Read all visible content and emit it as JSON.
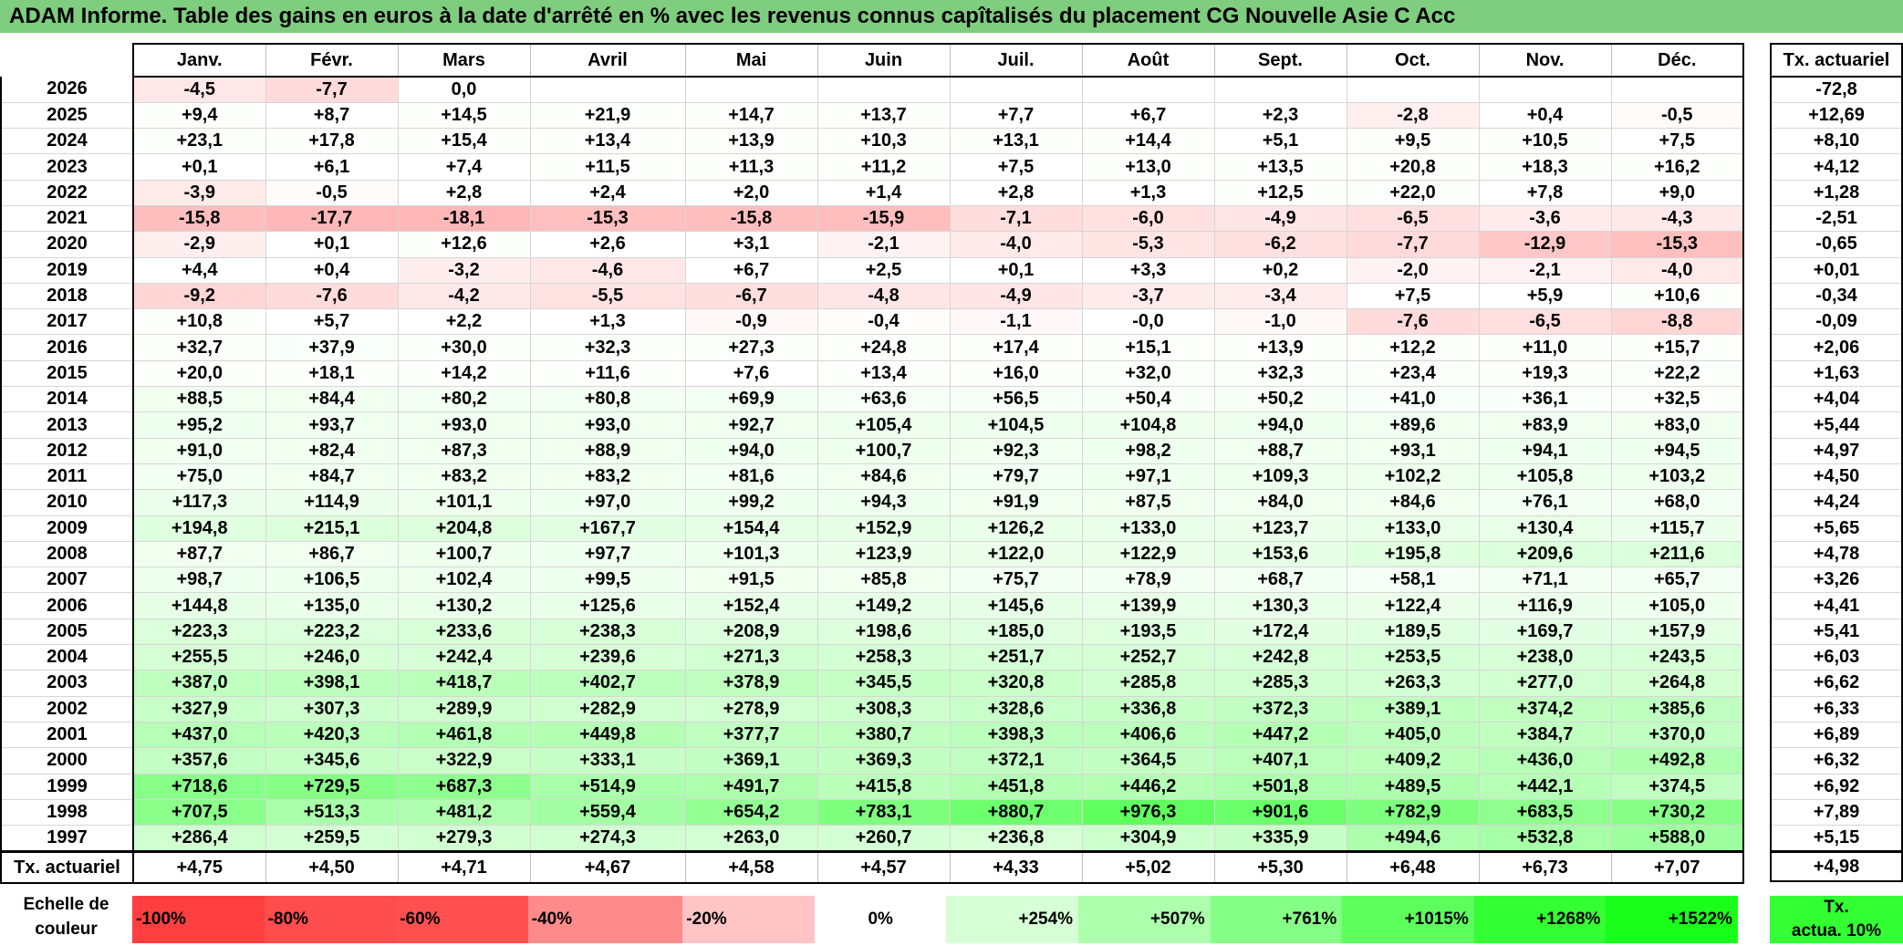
{
  "title": "ADAM Informe. Table des gains en euros à la date d'arrêté en % avec les revenus connus capîtalisés du placement CG Nouvelle Asie C Acc",
  "months": [
    "Janv.",
    "Févr.",
    "Mars",
    "Avril",
    "Mai",
    "Juin",
    "Juil.",
    "Août",
    "Sept.",
    "Oct.",
    "Nov.",
    "Déc."
  ],
  "rate_header": "Tx. actuariel",
  "rows": [
    {
      "year": "2026",
      "values": [
        "-4,5",
        "-7,7",
        "0,0",
        "",
        "",
        "",
        "",
        "",
        "",
        "",
        "",
        ""
      ],
      "rate": "-72,8"
    },
    {
      "year": "2025",
      "values": [
        "+9,4",
        "+8,7",
        "+14,5",
        "+21,9",
        "+14,7",
        "+13,7",
        "+7,7",
        "+6,7",
        "+2,3",
        "-2,8",
        "+0,4",
        "-0,5"
      ],
      "rate": "+12,69"
    },
    {
      "year": "2024",
      "values": [
        "+23,1",
        "+17,8",
        "+15,4",
        "+13,4",
        "+13,9",
        "+10,3",
        "+13,1",
        "+14,4",
        "+5,1",
        "+9,5",
        "+10,5",
        "+7,5"
      ],
      "rate": "+8,10"
    },
    {
      "year": "2023",
      "values": [
        "+0,1",
        "+6,1",
        "+7,4",
        "+11,5",
        "+11,3",
        "+11,2",
        "+7,5",
        "+13,0",
        "+13,5",
        "+20,8",
        "+18,3",
        "+16,2"
      ],
      "rate": "+4,12"
    },
    {
      "year": "2022",
      "values": [
        "-3,9",
        "-0,5",
        "+2,8",
        "+2,4",
        "+2,0",
        "+1,4",
        "+2,8",
        "+1,3",
        "+12,5",
        "+22,0",
        "+7,8",
        "+9,0"
      ],
      "rate": "+1,28"
    },
    {
      "year": "2021",
      "values": [
        "-15,8",
        "-17,7",
        "-18,1",
        "-15,3",
        "-15,8",
        "-15,9",
        "-7,1",
        "-6,0",
        "-4,9",
        "-6,5",
        "-3,6",
        "-4,3"
      ],
      "rate": "-2,51"
    },
    {
      "year": "2020",
      "values": [
        "-2,9",
        "+0,1",
        "+12,6",
        "+2,6",
        "+3,1",
        "-2,1",
        "-4,0",
        "-5,3",
        "-6,2",
        "-7,7",
        "-12,9",
        "-15,3"
      ],
      "rate": "-0,65"
    },
    {
      "year": "2019",
      "values": [
        "+4,4",
        "+0,4",
        "-3,2",
        "-4,6",
        "+6,7",
        "+2,5",
        "+0,1",
        "+3,3",
        "+0,2",
        "-2,0",
        "-2,1",
        "-4,0"
      ],
      "rate": "+0,01"
    },
    {
      "year": "2018",
      "values": [
        "-9,2",
        "-7,6",
        "-4,2",
        "-5,5",
        "-6,7",
        "-4,8",
        "-4,9",
        "-3,7",
        "-3,4",
        "+7,5",
        "+5,9",
        "+10,6"
      ],
      "rate": "-0,34"
    },
    {
      "year": "2017",
      "values": [
        "+10,8",
        "+5,7",
        "+2,2",
        "+1,3",
        "-0,9",
        "-0,4",
        "-1,1",
        "-0,0",
        "-1,0",
        "-7,6",
        "-6,5",
        "-8,8"
      ],
      "rate": "-0,09"
    },
    {
      "year": "2016",
      "values": [
        "+32,7",
        "+37,9",
        "+30,0",
        "+32,3",
        "+27,3",
        "+24,8",
        "+17,4",
        "+15,1",
        "+13,9",
        "+12,2",
        "+11,0",
        "+15,7"
      ],
      "rate": "+2,06"
    },
    {
      "year": "2015",
      "values": [
        "+20,0",
        "+18,1",
        "+14,2",
        "+11,6",
        "+7,6",
        "+13,4",
        "+16,0",
        "+32,0",
        "+32,3",
        "+23,4",
        "+19,3",
        "+22,2"
      ],
      "rate": "+1,63"
    },
    {
      "year": "2014",
      "values": [
        "+88,5",
        "+84,4",
        "+80,2",
        "+80,8",
        "+69,9",
        "+63,6",
        "+56,5",
        "+50,4",
        "+50,2",
        "+41,0",
        "+36,1",
        "+32,5"
      ],
      "rate": "+4,04"
    },
    {
      "year": "2013",
      "values": [
        "+95,2",
        "+93,7",
        "+93,0",
        "+93,0",
        "+92,7",
        "+105,4",
        "+104,5",
        "+104,8",
        "+94,0",
        "+89,6",
        "+83,9",
        "+83,0"
      ],
      "rate": "+5,44"
    },
    {
      "year": "2012",
      "values": [
        "+91,0",
        "+82,4",
        "+87,3",
        "+88,9",
        "+94,0",
        "+100,7",
        "+92,3",
        "+98,2",
        "+88,7",
        "+93,1",
        "+94,1",
        "+94,5"
      ],
      "rate": "+4,97"
    },
    {
      "year": "2011",
      "values": [
        "+75,0",
        "+84,7",
        "+83,2",
        "+83,2",
        "+81,6",
        "+84,6",
        "+79,7",
        "+97,1",
        "+109,3",
        "+102,2",
        "+105,8",
        "+103,2"
      ],
      "rate": "+4,50"
    },
    {
      "year": "2010",
      "values": [
        "+117,3",
        "+114,9",
        "+101,1",
        "+97,0",
        "+99,2",
        "+94,3",
        "+91,9",
        "+87,5",
        "+84,0",
        "+84,6",
        "+76,1",
        "+68,0"
      ],
      "rate": "+4,24"
    },
    {
      "year": "2009",
      "values": [
        "+194,8",
        "+215,1",
        "+204,8",
        "+167,7",
        "+154,4",
        "+152,9",
        "+126,2",
        "+133,0",
        "+123,7",
        "+133,0",
        "+130,4",
        "+115,7"
      ],
      "rate": "+5,65"
    },
    {
      "year": "2008",
      "values": [
        "+87,7",
        "+86,7",
        "+100,7",
        "+97,7",
        "+101,3",
        "+123,9",
        "+122,0",
        "+122,9",
        "+153,6",
        "+195,8",
        "+209,6",
        "+211,6"
      ],
      "rate": "+4,78"
    },
    {
      "year": "2007",
      "values": [
        "+98,7",
        "+106,5",
        "+102,4",
        "+99,5",
        "+91,5",
        "+85,8",
        "+75,7",
        "+78,9",
        "+68,7",
        "+58,1",
        "+71,1",
        "+65,7"
      ],
      "rate": "+3,26"
    },
    {
      "year": "2006",
      "values": [
        "+144,8",
        "+135,0",
        "+130,2",
        "+125,6",
        "+152,4",
        "+149,2",
        "+145,6",
        "+139,9",
        "+130,3",
        "+122,4",
        "+116,9",
        "+105,0"
      ],
      "rate": "+4,41"
    },
    {
      "year": "2005",
      "values": [
        "+223,3",
        "+223,2",
        "+233,6",
        "+238,3",
        "+208,9",
        "+198,6",
        "+185,0",
        "+193,5",
        "+172,4",
        "+189,5",
        "+169,7",
        "+157,9"
      ],
      "rate": "+5,41"
    },
    {
      "year": "2004",
      "values": [
        "+255,5",
        "+246,0",
        "+242,4",
        "+239,6",
        "+271,3",
        "+258,3",
        "+251,7",
        "+252,7",
        "+242,8",
        "+253,5",
        "+238,0",
        "+243,5"
      ],
      "rate": "+6,03"
    },
    {
      "year": "2003",
      "values": [
        "+387,0",
        "+398,1",
        "+418,7",
        "+402,7",
        "+378,9",
        "+345,5",
        "+320,8",
        "+285,8",
        "+285,3",
        "+263,3",
        "+277,0",
        "+264,8"
      ],
      "rate": "+6,62"
    },
    {
      "year": "2002",
      "values": [
        "+327,9",
        "+307,3",
        "+289,9",
        "+282,9",
        "+278,9",
        "+308,3",
        "+328,6",
        "+336,8",
        "+372,3",
        "+389,1",
        "+374,2",
        "+385,6"
      ],
      "rate": "+6,33"
    },
    {
      "year": "2001",
      "values": [
        "+437,0",
        "+420,3",
        "+461,8",
        "+449,8",
        "+377,7",
        "+380,7",
        "+398,3",
        "+406,6",
        "+447,2",
        "+405,0",
        "+384,7",
        "+370,0"
      ],
      "rate": "+6,89"
    },
    {
      "year": "2000",
      "values": [
        "+357,6",
        "+345,6",
        "+322,9",
        "+333,1",
        "+369,1",
        "+369,3",
        "+372,1",
        "+364,5",
        "+407,1",
        "+409,2",
        "+436,0",
        "+492,8"
      ],
      "rate": "+6,32"
    },
    {
      "year": "1999",
      "values": [
        "+718,6",
        "+729,5",
        "+687,3",
        "+514,9",
        "+491,7",
        "+415,8",
        "+451,8",
        "+446,2",
        "+501,8",
        "+489,5",
        "+442,1",
        "+374,5"
      ],
      "rate": "+6,92"
    },
    {
      "year": "1998",
      "values": [
        "+707,5",
        "+513,3",
        "+481,2",
        "+559,4",
        "+654,2",
        "+783,1",
        "+880,7",
        "+976,3",
        "+901,6",
        "+782,9",
        "+683,5",
        "+730,2"
      ],
      "rate": "+7,89"
    },
    {
      "year": "1997",
      "values": [
        "+286,4",
        "+259,5",
        "+279,3",
        "+274,3",
        "+263,0",
        "+260,7",
        "+236,8",
        "+304,9",
        "+335,9",
        "+494,6",
        "+532,8",
        "+588,0"
      ],
      "rate": "+5,15"
    }
  ],
  "footer": {
    "label": "Tx. actuariel",
    "values": [
      "+4,75",
      "+4,50",
      "+4,71",
      "+4,67",
      "+4,58",
      "+4,57",
      "+4,33",
      "+5,02",
      "+5,30",
      "+6,48",
      "+6,73",
      "+7,07"
    ],
    "rate": "+4,98"
  },
  "scale": {
    "label_line1": "Echelle de",
    "label_line2": "couleur",
    "cells": [
      {
        "text": "-100%",
        "color": "#ff3f3f",
        "kind": "neg"
      },
      {
        "text": "-80%",
        "color": "#ff4c4c",
        "kind": "neg"
      },
      {
        "text": "-60%",
        "color": "#ff5050",
        "kind": "neg"
      },
      {
        "text": "-40%",
        "color": "#ff8a8a",
        "kind": "neg"
      },
      {
        "text": "-20%",
        "color": "#ffc4c4",
        "kind": "neg"
      },
      {
        "text": "0%",
        "color": "#ffffff",
        "kind": "zero"
      },
      {
        "text": "+254%",
        "color": "#d6ffd6",
        "kind": "pos"
      },
      {
        "text": "+507%",
        "color": "#adffad",
        "kind": "pos"
      },
      {
        "text": "+761%",
        "color": "#85ff85",
        "kind": "pos"
      },
      {
        "text": "+1015%",
        "color": "#5cff5c",
        "kind": "pos"
      },
      {
        "text": "+1268%",
        "color": "#33ff33",
        "kind": "pos"
      },
      {
        "text": "+1522%",
        "color": "#1aff1a",
        "kind": "pos"
      }
    ],
    "rate_line1": "Tx.",
    "rate_line2": "actua. 10%",
    "rate_color": "#33ff33"
  }
}
